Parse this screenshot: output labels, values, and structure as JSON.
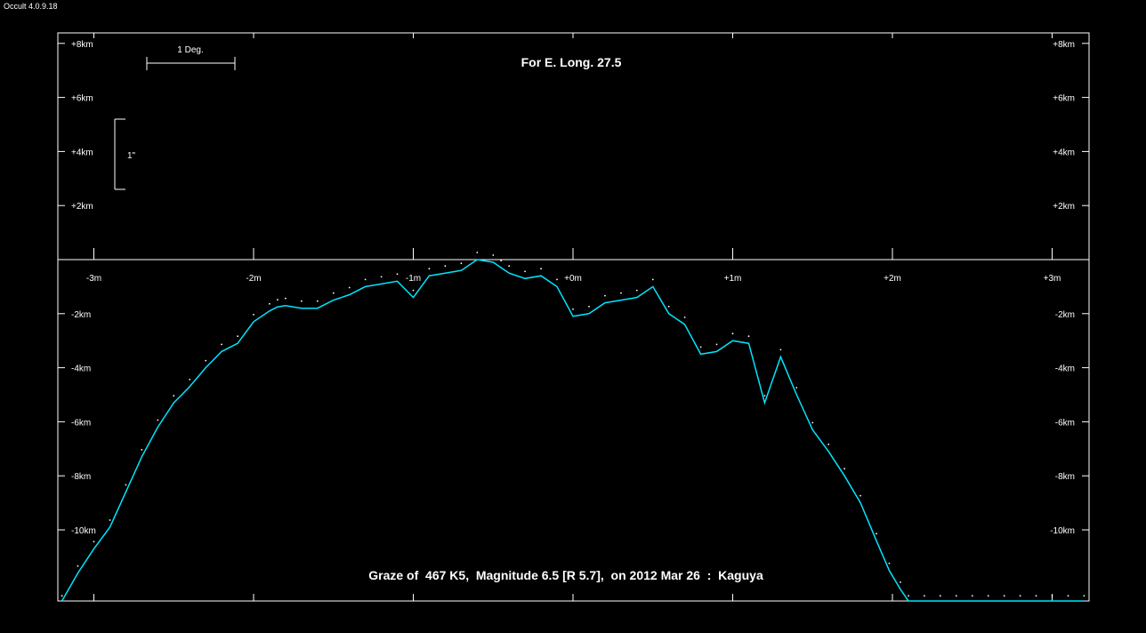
{
  "window": {
    "app_title": "Occult 4.0.9.18"
  },
  "colors": {
    "background": "#000000",
    "axes": "#ffffff",
    "profile": "#00e5ff",
    "points": "#ffffff"
  },
  "chart_data": {
    "type": "line",
    "title": "For E. Long. 27.5",
    "subtitle": "Graze of  467 K5,  Magnitude 6.5 [R 5.7],  on 2012 Mar 26  :  Kaguya",
    "xlabel": "",
    "ylabel": "",
    "xlim": [
      -3.23,
      3.23
    ],
    "ylim": [
      -12.7,
      8.5
    ],
    "x_ticks": [
      {
        "value": -3,
        "label": "-3m"
      },
      {
        "value": -2,
        "label": "-2m"
      },
      {
        "value": -1,
        "label": "-1m"
      },
      {
        "value": 0,
        "label": "+0m"
      },
      {
        "value": 1,
        "label": "+1m"
      },
      {
        "value": 2,
        "label": "+2m"
      },
      {
        "value": 3,
        "label": "+3m"
      }
    ],
    "y_ticks": [
      {
        "value": 8,
        "label": "+8km"
      },
      {
        "value": 6,
        "label": "+6km"
      },
      {
        "value": 4,
        "label": "+4km"
      },
      {
        "value": 2,
        "label": "+2km"
      },
      {
        "value": -2,
        "label": "-2km"
      },
      {
        "value": -4,
        "label": "-4km"
      },
      {
        "value": -6,
        "label": "-6km"
      },
      {
        "value": -8,
        "label": "-8km"
      },
      {
        "value": -10,
        "label": "-10km"
      }
    ],
    "scale_bars": {
      "horizontal_label": "1 Deg.",
      "vertical_label": "1\""
    },
    "grid": false,
    "legend": "none",
    "series": [
      {
        "values_x": [
          -3.2,
          -3.1,
          -3.0,
          -2.9,
          -2.8,
          -2.7,
          -2.6,
          -2.5,
          -2.4,
          -2.3,
          -2.2,
          -2.1,
          -2.0,
          -1.9,
          -1.85,
          -1.8,
          -1.7,
          -1.6,
          -1.5,
          -1.4,
          -1.3,
          -1.2,
          -1.1,
          -1.0,
          -0.9,
          -0.8,
          -0.7,
          -0.6,
          -0.5,
          -0.45,
          -0.4,
          -0.3,
          -0.2,
          -0.1,
          0.0,
          0.1,
          0.2,
          0.3,
          0.4,
          0.5,
          0.6,
          0.7,
          0.8,
          0.9,
          1.0,
          1.1,
          1.2,
          1.3,
          1.4,
          1.5,
          1.6,
          1.7,
          1.8,
          1.9,
          1.98,
          2.05,
          2.1,
          2.2,
          2.3,
          2.4,
          2.5,
          2.6,
          2.7,
          2.8,
          2.9,
          3.0,
          3.1,
          3.2
        ],
        "values_y": [
          -12.7,
          -11.6,
          -10.7,
          -9.9,
          -8.6,
          -7.3,
          -6.2,
          -5.3,
          -4.7,
          -4.0,
          -3.4,
          -3.1,
          -2.3,
          -1.9,
          -1.75,
          -1.7,
          -1.8,
          -1.8,
          -1.5,
          -1.3,
          -1.0,
          -0.9,
          -0.8,
          -1.4,
          -0.6,
          -0.5,
          -0.4,
          0.0,
          -0.1,
          -0.3,
          -0.5,
          -0.7,
          -0.6,
          -1.0,
          -2.1,
          -2.0,
          -1.6,
          -1.5,
          -1.4,
          -1.0,
          -2.0,
          -2.4,
          -3.5,
          -3.4,
          -3.0,
          -3.1,
          -5.3,
          -3.6,
          -5.0,
          -6.3,
          -7.1,
          -8.0,
          -9.0,
          -10.4,
          -11.5,
          -12.2,
          -12.7,
          -12.7,
          -12.7,
          -12.7,
          -12.7,
          -12.7,
          -12.7,
          -12.7,
          -12.7,
          -12.7,
          -12.7,
          -12.7
        ]
      }
    ]
  }
}
